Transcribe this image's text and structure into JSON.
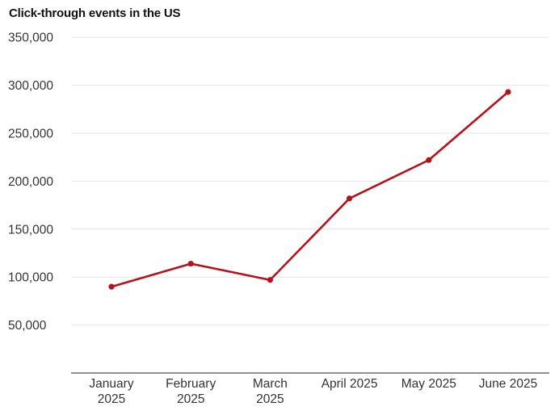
{
  "chart_data": {
    "type": "line",
    "title": "Click-through events in the US",
    "xlabel": "",
    "ylabel": "",
    "categories": [
      [
        "January",
        "2025"
      ],
      [
        "February",
        "2025"
      ],
      [
        "March",
        "2025"
      ],
      [
        "April 2025"
      ],
      [
        "May 2025"
      ],
      [
        "June 2025"
      ]
    ],
    "series": [
      {
        "name": "Click-through events",
        "color": "#b5121b",
        "values": [
          90000,
          114000,
          97000,
          182000,
          222000,
          293000
        ]
      }
    ],
    "ylim": [
      0,
      350000
    ],
    "yticks": [
      50000,
      100000,
      150000,
      200000,
      250000,
      300000,
      350000
    ],
    "ytick_labels": [
      "50,000",
      "100,000",
      "150,000",
      "200,000",
      "250,000",
      "300,000",
      "350,000"
    ],
    "grid": true,
    "legend": "none"
  }
}
